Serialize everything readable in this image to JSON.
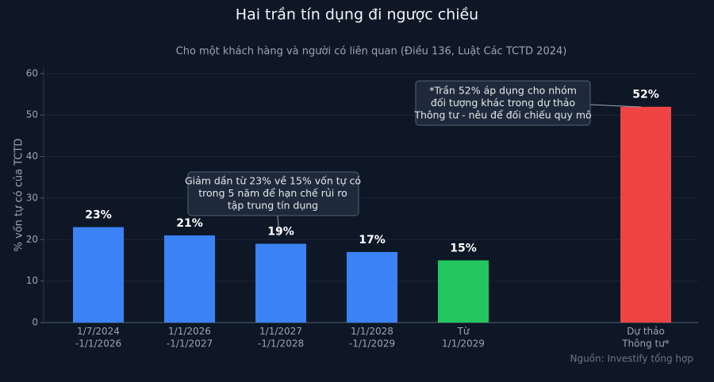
{
  "chart_data": {
    "type": "bar",
    "title": "Hai trần tín dụng đi ngược chiều",
    "subtitle": "Cho một khách hàng và người có liên quan (Điều 136, Luật Các TCTD 2024)",
    "y_label": "% vốn tự có của TCTD",
    "categories": [
      "1/7/2024\n-1/1/2026",
      "1/1/2026\n-1/1/2027",
      "1/1/2027\n-1/1/2028",
      "1/1/2028\n-1/1/2029",
      "Từ\n1/1/2029",
      null,
      "Dự thảo\nThông tư*"
    ],
    "values": [
      23,
      21,
      19,
      17,
      15,
      null,
      52
    ],
    "value_labels": [
      "23%",
      "21%",
      "19%",
      "17%",
      "15%",
      null,
      "52%"
    ],
    "colors": [
      "#3b82f6",
      "#3b82f6",
      "#3b82f6",
      "#3b82f6",
      "#22c55e",
      null,
      "#ef4444"
    ],
    "ylim": [
      0,
      61.5
    ],
    "yticks": [
      0,
      10,
      20,
      30,
      40,
      50,
      60
    ],
    "grid": true,
    "annotations": [
      "Giảm dần từ 23% về 15% vốn tự có\ntrong 5 năm để hạn chế rủi ro\ntập trung tín dụng",
      "*Trần 52% áp dụng cho nhóm\nđối tượng khác trong dự thảo\nThông tư - nêu để đối chiếu quy mô"
    ],
    "source": "Nguồn: Investify tổng hợp"
  }
}
